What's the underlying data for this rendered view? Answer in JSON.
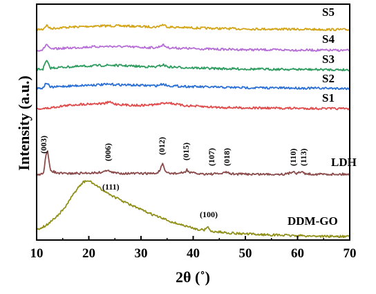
{
  "chart_data": {
    "type": "line",
    "xlabel": "2θ (˚)",
    "ylabel": "Intensity (a.u.)",
    "xlim": [
      10,
      70
    ],
    "xticks": [
      "10",
      "20",
      "30",
      "40",
      "50",
      "60",
      "70"
    ],
    "grid": false,
    "series": [
      {
        "name": "S5",
        "color": "#d4a418",
        "x": [
          10,
          11.2,
          11.9,
          12.6,
          15,
          18,
          21,
          24,
          27,
          30,
          33,
          34.2,
          35.2,
          38,
          41,
          45,
          50,
          55,
          60,
          65,
          70
        ],
        "y": [
          0.1,
          0.12,
          0.55,
          0.2,
          0.3,
          0.38,
          0.45,
          0.48,
          0.46,
          0.4,
          0.36,
          0.6,
          0.36,
          0.3,
          0.25,
          0.2,
          0.16,
          0.14,
          0.12,
          0.1,
          0.08
        ]
      },
      {
        "name": "S4",
        "color": "#b66ed6",
        "x": [
          10,
          11.2,
          11.9,
          12.6,
          15,
          18,
          21,
          24,
          27,
          30,
          33,
          34.2,
          35.2,
          38,
          41,
          45,
          50,
          55,
          60,
          65,
          70
        ],
        "y": [
          0.1,
          0.14,
          0.75,
          0.2,
          0.3,
          0.38,
          0.46,
          0.5,
          0.46,
          0.4,
          0.36,
          0.65,
          0.36,
          0.3,
          0.25,
          0.2,
          0.16,
          0.14,
          0.12,
          0.1,
          0.08
        ]
      },
      {
        "name": "S3",
        "color": "#2e9c5f",
        "x": [
          10,
          11.2,
          11.9,
          12.6,
          15,
          18,
          21,
          24,
          27,
          30,
          33,
          34.2,
          35.2,
          38,
          41,
          45,
          50,
          55,
          60,
          65,
          70
        ],
        "y": [
          0.12,
          0.16,
          1.05,
          0.25,
          0.35,
          0.42,
          0.5,
          0.55,
          0.5,
          0.42,
          0.38,
          0.6,
          0.38,
          0.32,
          0.26,
          0.2,
          0.16,
          0.14,
          0.12,
          0.1,
          0.08
        ]
      },
      {
        "name": "S2",
        "color": "#2a6fd6",
        "x": [
          10,
          11.2,
          11.9,
          12.6,
          15,
          18,
          21,
          24,
          27,
          30,
          33,
          34.2,
          35.2,
          38,
          41,
          45,
          50,
          55,
          60,
          65,
          70
        ],
        "y": [
          0.1,
          0.14,
          0.7,
          0.2,
          0.3,
          0.38,
          0.45,
          0.5,
          0.45,
          0.4,
          0.36,
          0.55,
          0.36,
          0.3,
          0.25,
          0.2,
          0.16,
          0.14,
          0.12,
          0.1,
          0.08
        ]
      },
      {
        "name": "S1",
        "color": "#e04a4a",
        "x": [
          10,
          12,
          15,
          18,
          21,
          23,
          24,
          25,
          27,
          30,
          33,
          35,
          36.5,
          38,
          41,
          45,
          50,
          55,
          60,
          65,
          70
        ],
        "y": [
          0.05,
          0.1,
          0.35,
          0.5,
          0.58,
          0.6,
          0.75,
          0.55,
          0.45,
          0.4,
          0.5,
          0.7,
          0.55,
          0.4,
          0.3,
          0.2,
          0.15,
          0.12,
          0.1,
          0.08,
          0.05
        ]
      },
      {
        "name": "LDH",
        "color": "#8b4a4a",
        "x": [
          10,
          11,
          11.4,
          11.7,
          12.1,
          12.6,
          14,
          16,
          18,
          20,
          22,
          23.2,
          23.6,
          24.1,
          25,
          27,
          30,
          33,
          33.7,
          34.1,
          34.6,
          35.5,
          37,
          38.4,
          38.8,
          39.3,
          41,
          44,
          45.8,
          46.3,
          46.9,
          48,
          52,
          55,
          58,
          58.9,
          59.3,
          59.8,
          60.3,
          60.8,
          61.3,
          62,
          65,
          68,
          70
        ],
        "y": [
          0.05,
          0.1,
          0.5,
          2.2,
          2.8,
          0.6,
          0.2,
          0.18,
          0.2,
          0.25,
          0.3,
          0.45,
          0.7,
          0.35,
          0.25,
          0.2,
          0.18,
          0.2,
          0.6,
          1.45,
          0.4,
          0.2,
          0.2,
          0.3,
          0.65,
          0.3,
          0.15,
          0.12,
          0.2,
          0.4,
          0.18,
          0.12,
          0.1,
          0.1,
          0.12,
          0.35,
          0.5,
          0.2,
          0.28,
          0.4,
          0.2,
          0.12,
          0.1,
          0.1,
          0.1
        ]
      },
      {
        "name": "DDM-GO",
        "color": "#8f8f1a",
        "x": [
          10,
          11,
          12,
          13,
          14,
          15,
          16,
          17,
          18,
          19,
          19.7,
          20.5,
          21.5,
          23,
          25,
          27,
          30,
          33,
          36,
          39,
          41,
          42.2,
          42.7,
          43.3,
          45,
          48,
          52,
          56,
          60,
          65,
          70
        ],
        "y": [
          0.6,
          0.75,
          0.95,
          1.3,
          1.65,
          2.05,
          2.6,
          3.25,
          3.8,
          4.2,
          4.3,
          4.2,
          3.9,
          3.5,
          3.05,
          2.65,
          2.1,
          1.6,
          1.15,
          0.8,
          0.6,
          0.55,
          0.85,
          0.45,
          0.4,
          0.3,
          0.22,
          0.17,
          0.12,
          0.08,
          0.05
        ]
      }
    ],
    "annotations": [
      "(003)",
      "(006)",
      "(012)",
      "(015)",
      "(107)",
      "(018)",
      "(110)",
      "(113)",
      "(111)",
      "(100)"
    ]
  }
}
